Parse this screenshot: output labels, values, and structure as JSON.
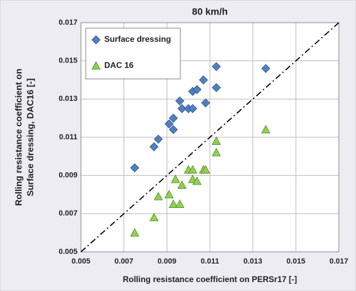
{
  "chart_data": {
    "type": "scatter",
    "title": "80 km/h",
    "x_label": "Rolling resistance coefficient on PERSr17 [-]",
    "y_label": [
      "Rolling resistance coefficient on",
      "Surface dressing, DAC16  [-]"
    ],
    "xlim": [
      0.005,
      0.017
    ],
    "xticks": [
      0.005,
      0.007,
      0.009,
      0.011,
      0.013,
      0.015,
      0.017
    ],
    "ylim": [
      0.005,
      0.017
    ],
    "yticks": [
      0.005,
      0.007,
      0.009,
      0.011,
      0.013,
      0.015,
      0.017
    ],
    "grid": true,
    "legend": "upper left",
    "series": [
      {
        "name": "Surface dressing",
        "color": "#4f81bd",
        "marker": "diamond",
        "x": [
          0.0075,
          0.0084,
          0.0086,
          0.0091,
          0.0093,
          0.0093,
          0.0096,
          0.0097,
          0.01,
          0.0102,
          0.0102,
          0.0104,
          0.0107,
          0.0108,
          0.0113,
          0.0113,
          0.0136
        ],
        "y": [
          0.0094,
          0.0105,
          0.0109,
          0.0117,
          0.0114,
          0.012,
          0.0129,
          0.0125,
          0.0125,
          0.0134,
          0.0125,
          0.0135,
          0.014,
          0.0128,
          0.0147,
          0.0136,
          0.0146
        ]
      },
      {
        "name": "DAC 16",
        "color": "#92d050",
        "marker": "triangle",
        "x": [
          0.0075,
          0.0084,
          0.0086,
          0.0091,
          0.0093,
          0.0094,
          0.0096,
          0.0097,
          0.01,
          0.0102,
          0.0102,
          0.0104,
          0.0107,
          0.0108,
          0.0113,
          0.0113,
          0.0136
        ],
        "y": [
          0.006,
          0.0068,
          0.0079,
          0.008,
          0.0075,
          0.0088,
          0.0075,
          0.0085,
          0.0093,
          0.0093,
          0.0088,
          0.0087,
          0.0093,
          0.0093,
          0.0108,
          0.0102,
          0.0114
        ]
      }
    ]
  }
}
